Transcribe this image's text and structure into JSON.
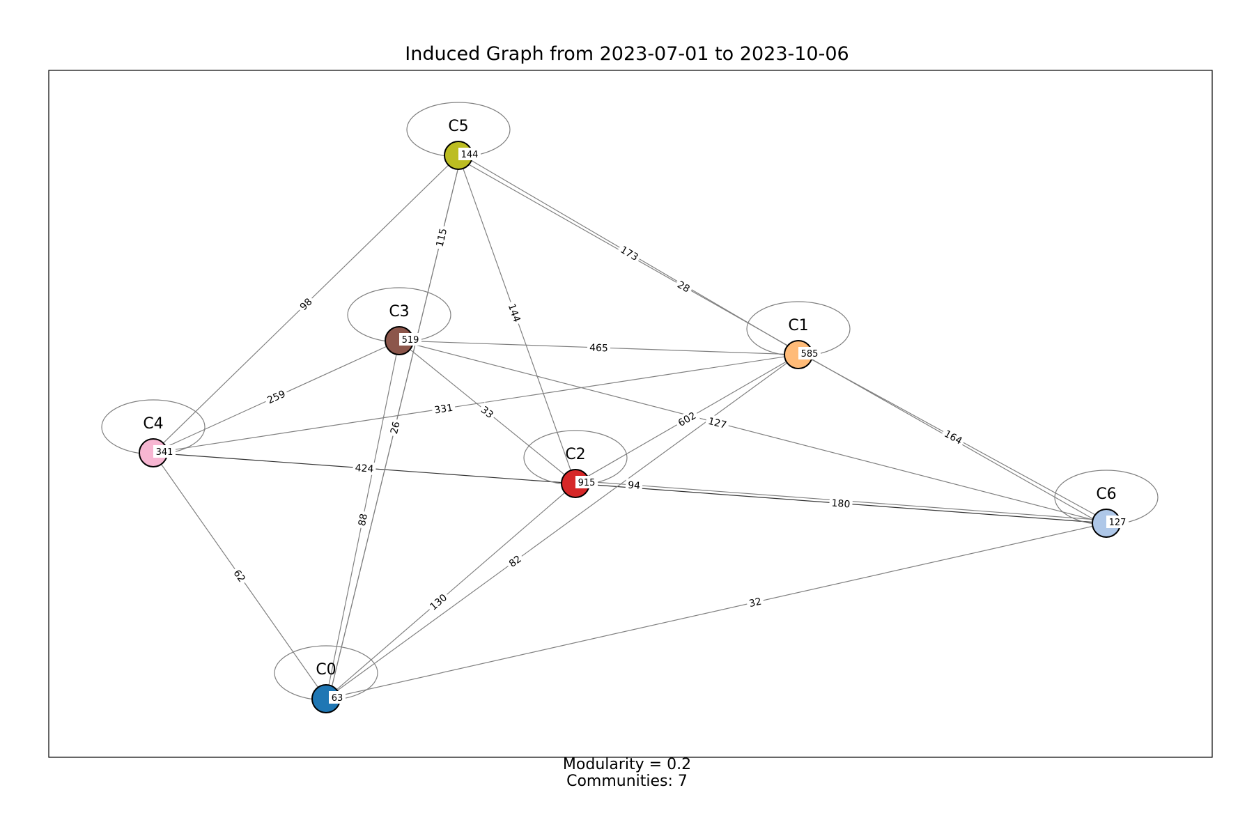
{
  "title": "Induced Graph from 2023-07-01 to 2023-10-06",
  "footer": {
    "modularity": "Modularity = 0.2",
    "communities": "Communities: 7"
  },
  "chart_data": {
    "type": "network",
    "nodes": [
      {
        "id": "C0",
        "label": "C0",
        "value": "63",
        "color": "#1f77b4"
      },
      {
        "id": "C1",
        "label": "C1",
        "value": "585",
        "color": "#ffbb78"
      },
      {
        "id": "C2",
        "label": "C2",
        "value": "915",
        "color": "#d62728"
      },
      {
        "id": "C3",
        "label": "C3",
        "value": "519",
        "color": "#8c564b"
      },
      {
        "id": "C4",
        "label": "C4",
        "value": "341",
        "color": "#f7b6d2"
      },
      {
        "id": "C5",
        "label": "C5",
        "value": "144",
        "color": "#bcbd22"
      },
      {
        "id": "C6",
        "label": "C6",
        "value": "127",
        "color": "#aec7e8"
      }
    ],
    "edges": [
      {
        "source": "C5",
        "target": "C4",
        "weight": "98"
      },
      {
        "source": "C5",
        "target": "C0",
        "weight": "115"
      },
      {
        "source": "C5",
        "target": "C2",
        "weight": "144"
      },
      {
        "source": "C5",
        "target": "C1",
        "weight": "173"
      },
      {
        "source": "C5",
        "target": "C6",
        "weight": "28"
      },
      {
        "source": "C3",
        "target": "C1",
        "weight": "465"
      },
      {
        "source": "C3",
        "target": "C4",
        "weight": "259"
      },
      {
        "source": "C3",
        "target": "C2",
        "weight": "33"
      },
      {
        "source": "C3",
        "target": "C6",
        "weight": "127"
      },
      {
        "source": "C3",
        "target": "C0",
        "weight": "88"
      },
      {
        "source": "C4",
        "target": "C1",
        "weight": "331"
      },
      {
        "source": "C4",
        "target": "C2",
        "weight": "424"
      },
      {
        "source": "C4",
        "target": "C0",
        "weight": "62"
      },
      {
        "source": "C2",
        "target": "C1",
        "weight": "602"
      },
      {
        "source": "C2",
        "target": "C6",
        "weight": "180"
      },
      {
        "source": "C2",
        "target": "C0",
        "weight": "130"
      },
      {
        "source": "C1",
        "target": "C6",
        "weight": "164"
      },
      {
        "source": "C1",
        "target": "C0",
        "weight": "82"
      },
      {
        "source": "C0",
        "target": "C6",
        "weight": "32"
      },
      {
        "source": "C0",
        "target": "C5",
        "weight": "26"
      },
      {
        "source": "C6",
        "target": "C2",
        "weight": "94"
      }
    ],
    "edge_color": "#808080",
    "node_border_color": "#000000"
  }
}
